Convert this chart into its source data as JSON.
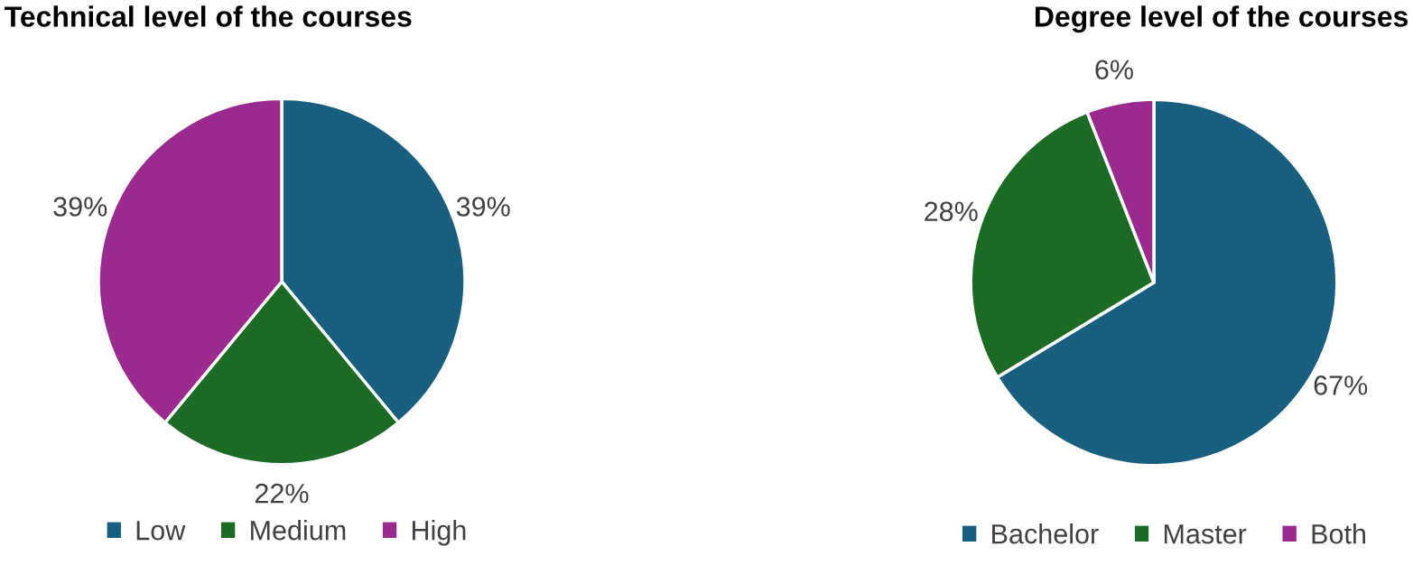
{
  "chart_data": [
    {
      "type": "pie",
      "title": "Technical level of the courses",
      "categories": [
        "Low",
        "Medium",
        "High"
      ],
      "values": [
        39,
        22,
        39
      ],
      "colors": [
        "#175e7f",
        "#1b6b24",
        "#9b2a8e"
      ],
      "value_labels": [
        "39%",
        "22%",
        "39%"
      ],
      "legend": "bottom"
    },
    {
      "type": "pie",
      "title": "Degree level of the courses",
      "categories": [
        "Bachelor",
        "Master",
        "Both"
      ],
      "values": [
        67,
        28,
        6
      ],
      "colors": [
        "#175e7f",
        "#1b6b24",
        "#9b2a8e"
      ],
      "value_labels": [
        "67%",
        "28%",
        "6%"
      ],
      "legend": "bottom"
    }
  ]
}
